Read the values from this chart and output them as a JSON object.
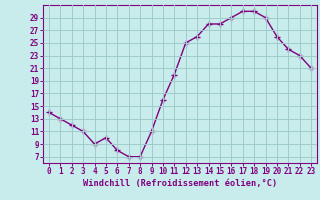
{
  "x": [
    0,
    1,
    2,
    3,
    4,
    5,
    6,
    7,
    8,
    9,
    10,
    11,
    12,
    13,
    14,
    15,
    16,
    17,
    18,
    19,
    20,
    21,
    22,
    23
  ],
  "y": [
    14,
    13,
    12,
    11,
    9,
    10,
    8,
    7,
    7,
    11,
    16,
    20,
    25,
    26,
    28,
    28,
    29,
    30,
    30,
    29,
    26,
    24,
    23,
    21
  ],
  "line_color": "#800080",
  "marker": "+",
  "bg_color": "#c8ecec",
  "grid_color": "#a0cccc",
  "xlabel": "Windchill (Refroidissement éolien,°C)",
  "xlim": [
    -0.5,
    23.5
  ],
  "ylim": [
    6,
    31
  ],
  "yticks": [
    7,
    9,
    11,
    13,
    15,
    17,
    19,
    21,
    23,
    25,
    27,
    29
  ],
  "xticks": [
    0,
    1,
    2,
    3,
    4,
    5,
    6,
    7,
    8,
    9,
    10,
    11,
    12,
    13,
    14,
    15,
    16,
    17,
    18,
    19,
    20,
    21,
    22,
    23
  ],
  "font_color": "#800080",
  "line_width": 1.0,
  "marker_size": 4,
  "marker_ew": 1.0
}
